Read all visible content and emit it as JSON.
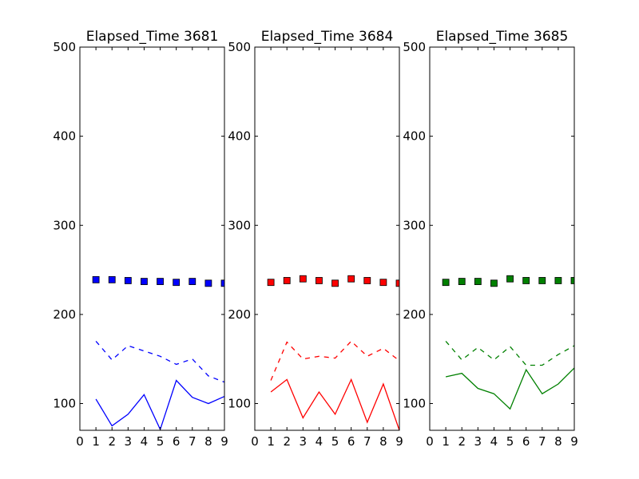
{
  "chart_data": [
    {
      "type": "line",
      "title": "Elapsed_Time 3681",
      "color": "#0000ff",
      "xlim": [
        0,
        9
      ],
      "ylim": [
        70,
        500
      ],
      "xticks": [
        "0",
        "1",
        "2",
        "3",
        "4",
        "5",
        "6",
        "7",
        "8",
        "9"
      ],
      "yticks": [
        "100",
        "200",
        "300",
        "400",
        "500"
      ],
      "grid": false,
      "x": [
        1,
        2,
        3,
        4,
        5,
        6,
        7,
        8,
        9
      ],
      "series": [
        {
          "style": "square-markers",
          "values": [
            239,
            239,
            238,
            237,
            237,
            236,
            237,
            235,
            235
          ]
        },
        {
          "style": "dashed",
          "values": [
            170,
            149,
            165,
            159,
            153,
            144,
            150,
            131,
            124
          ]
        },
        {
          "style": "solid",
          "values": [
            105,
            75,
            88,
            110,
            71,
            126,
            107,
            100,
            108
          ]
        }
      ]
    },
    {
      "type": "line",
      "title": "Elapsed_Time 3684",
      "color": "#ff0000",
      "xlim": [
        0,
        9
      ],
      "ylim": [
        70,
        500
      ],
      "xticks": [
        "0",
        "1",
        "2",
        "3",
        "4",
        "5",
        "6",
        "7",
        "8",
        "9"
      ],
      "yticks": [
        "100",
        "200",
        "300",
        "400",
        "500"
      ],
      "grid": false,
      "x": [
        1,
        2,
        3,
        4,
        5,
        6,
        7,
        8,
        9
      ],
      "series": [
        {
          "style": "square-markers",
          "values": [
            236,
            238,
            240,
            238,
            235,
            240,
            238,
            236,
            235
          ]
        },
        {
          "style": "dashed",
          "values": [
            126,
            169,
            150,
            153,
            151,
            170,
            153,
            162,
            148
          ]
        },
        {
          "style": "solid",
          "values": [
            113,
            127,
            84,
            113,
            88,
            127,
            79,
            122,
            70
          ]
        }
      ]
    },
    {
      "type": "line",
      "title": "Elapsed_Time 3685",
      "color": "#008000",
      "xlim": [
        0,
        9
      ],
      "ylim": [
        70,
        500
      ],
      "xticks": [
        "0",
        "1",
        "2",
        "3",
        "4",
        "5",
        "6",
        "7",
        "8",
        "9"
      ],
      "yticks": [
        "100",
        "200",
        "300",
        "400",
        "500"
      ],
      "grid": false,
      "x": [
        1,
        2,
        3,
        4,
        5,
        6,
        7,
        8,
        9
      ],
      "series": [
        {
          "style": "square-markers",
          "values": [
            236,
            237,
            237,
            235,
            240,
            238,
            238,
            238,
            238
          ]
        },
        {
          "style": "dashed",
          "values": [
            170,
            149,
            163,
            149,
            164,
            143,
            143,
            155,
            165
          ]
        },
        {
          "style": "solid",
          "values": [
            130,
            134,
            117,
            111,
            94,
            138,
            111,
            122,
            140
          ]
        }
      ]
    }
  ]
}
